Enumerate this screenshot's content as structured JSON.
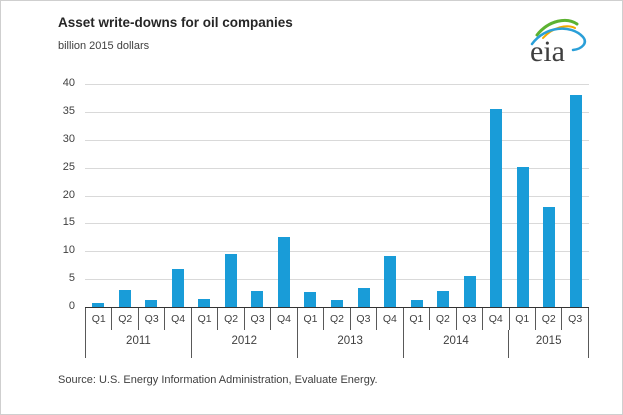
{
  "header": {
    "title": "Asset write-downs for oil companies",
    "subtitle": "billion 2015 dollars",
    "logo_text": "eia"
  },
  "chart_data": {
    "type": "bar",
    "title": "Asset write-downs for oil companies",
    "ylabel": "billion 2015 dollars",
    "xlabel": "",
    "ylim": [
      0,
      40
    ],
    "yticks": [
      0,
      5,
      10,
      15,
      20,
      25,
      30,
      35,
      40
    ],
    "grid": "horizontal",
    "legend": "none",
    "bar_color": "#199cd8",
    "categories": [
      "Q1",
      "Q2",
      "Q3",
      "Q4",
      "Q1",
      "Q2",
      "Q3",
      "Q4",
      "Q1",
      "Q2",
      "Q3",
      "Q4",
      "Q1",
      "Q2",
      "Q3",
      "Q4",
      "Q1",
      "Q2",
      "Q3"
    ],
    "values": [
      0.8,
      3.1,
      1.3,
      6.8,
      1.4,
      9.5,
      2.9,
      12.6,
      2.7,
      1.3,
      3.5,
      9.2,
      1.2,
      2.9,
      5.5,
      35.6,
      25.2,
      18.0,
      38.0
    ],
    "year_groups": [
      {
        "label": "2011",
        "span": 4
      },
      {
        "label": "2012",
        "span": 4
      },
      {
        "label": "2013",
        "span": 4
      },
      {
        "label": "2014",
        "span": 4
      },
      {
        "label": "2015",
        "span": 3
      }
    ]
  },
  "footer": {
    "source": "Source:  U.S. Energy Information Administration, Evaluate Energy."
  }
}
